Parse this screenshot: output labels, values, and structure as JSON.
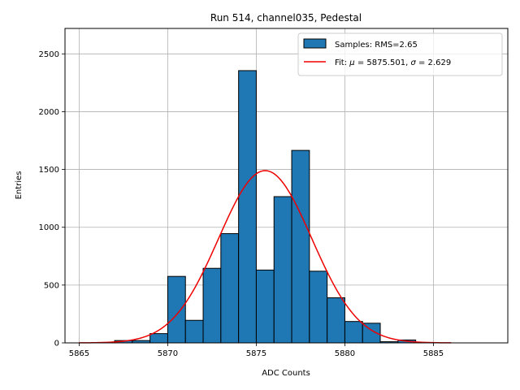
{
  "chart_data": {
    "type": "bar",
    "title": "Run 514, channel035, Pedestal",
    "xlabel": "ADC Counts",
    "ylabel": "Entries",
    "xlim": [
      5864.2,
      5889.2
    ],
    "ylim": [
      0,
      2720
    ],
    "xticks": [
      5865,
      5870,
      5875,
      5880,
      5885
    ],
    "yticks": [
      0,
      500,
      1000,
      1500,
      2000,
      2500
    ],
    "grid": true,
    "legend_position": "top-right",
    "bin_edges": [
      5867,
      5868,
      5869,
      5870,
      5871,
      5872,
      5873,
      5874,
      5875,
      5876,
      5877,
      5878,
      5879,
      5880,
      5881,
      5882,
      5883,
      5884
    ],
    "series": [
      {
        "name": "Samples: RMS=2.65",
        "kind": "histogram",
        "color": "#1f77b4",
        "values": [
          20,
          20,
          80,
          575,
          195,
          645,
          945,
          2355,
          630,
          1265,
          1665,
          620,
          390,
          185,
          170,
          10,
          25
        ]
      },
      {
        "name": "Fit: μ = 5875.501, σ = 2.629",
        "kind": "gaussian",
        "color": "#ee0000",
        "mu": 5875.501,
        "sigma": 2.629,
        "amplitude": 1490,
        "x_range": [
          5865,
          5886
        ]
      }
    ],
    "legend": {
      "hist_label": "Samples: RMS=2.65",
      "fit_prefix": "Fit: ",
      "mu_symbol": "μ",
      "mu_text": " = 5875.501, ",
      "sigma_symbol": "σ",
      "sigma_text": " = 2.629"
    }
  }
}
